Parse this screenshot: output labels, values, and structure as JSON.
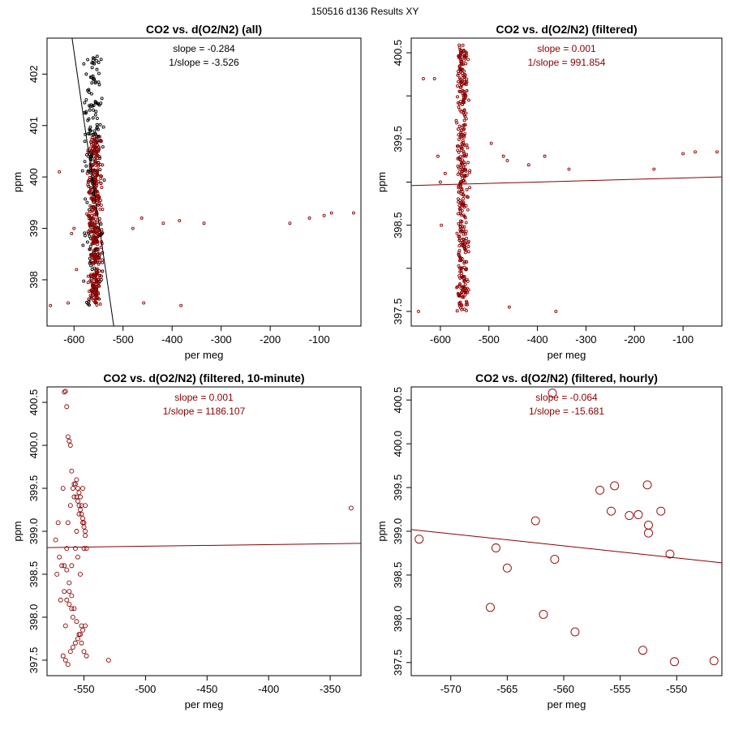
{
  "supertitle": "150516   d136   Results XY",
  "colors": {
    "black": "#000000",
    "darkred": "#8b0000"
  },
  "chart_data": [
    {
      "type": "scatter",
      "title": "CO2 vs. d(O2/N2) (all)",
      "xlabel": "per meg",
      "ylabel": "ppm",
      "xlim": [
        -655,
        -15
      ],
      "ylim": [
        397.1,
        402.7
      ],
      "xticks": [
        -600,
        -500,
        -400,
        -300,
        -200,
        -100
      ],
      "yticks": [
        398,
        399,
        400,
        401,
        402
      ],
      "yticklabels": [
        "398",
        "399",
        "400",
        "401",
        "402"
      ],
      "annotations": [
        "slope = -0.284",
        "1/slope = -3.526"
      ],
      "annotation_color": "#000000",
      "fit_line": {
        "color": "#000000",
        "points": [
          [
            -604,
            402.7
          ],
          [
            -519,
            397.1
          ]
        ]
      },
      "point_size": "small",
      "series": [
        {
          "name": "all",
          "color": "#000000",
          "cluster": {
            "cx": -560,
            "jitter_x": 18,
            "y_from": 397.5,
            "y_to": 402.4,
            "count": 200
          },
          "x": [
            -580,
            -575,
            -570,
            -575,
            -568,
            -572,
            -566,
            -560,
            -556,
            -578,
            -570,
            -563
          ],
          "y": [
            402.2,
            402.0,
            401.7,
            401.5,
            401.3,
            401.1,
            400.9,
            400.7,
            400.5,
            400.3,
            400.1,
            399.9
          ]
        },
        {
          "name": "filtered",
          "color": "#8b0000",
          "cluster": {
            "cx": -557,
            "jitter_x": 13,
            "y_from": 397.5,
            "y_to": 400.8,
            "count": 340
          },
          "x": [
            -648,
            -630,
            -612,
            -605,
            -600,
            -595,
            -480,
            -462,
            -458,
            -418,
            -385,
            -382,
            -335,
            -160,
            -120,
            -90,
            -75,
            -30
          ],
          "y": [
            397.5,
            400.1,
            397.55,
            398.9,
            399.0,
            398.2,
            399.0,
            399.2,
            397.55,
            399.1,
            399.15,
            397.5,
            399.1,
            399.1,
            399.2,
            399.25,
            399.3,
            399.3
          ]
        }
      ]
    },
    {
      "type": "scatter",
      "title": "CO2 vs. d(O2/N2) (filtered)",
      "xlabel": "per meg",
      "ylabel": "ppm",
      "xlim": [
        -660,
        -20
      ],
      "ylim": [
        397.33,
        400.67
      ],
      "xticks": [
        -600,
        -500,
        -400,
        -300,
        -200,
        -100
      ],
      "yticks": [
        397.5,
        398.0,
        398.5,
        399.0,
        399.5,
        400.0,
        400.5
      ],
      "yticklabels": [
        "397.5",
        "398.5",
        "399.5",
        "400.5"
      ],
      "annotations": [
        "slope = 0.001",
        "1/slope = 991.854"
      ],
      "annotation_color": "#8b0000",
      "fit_line": {
        "color": "#8b0000",
        "points": [
          [
            -660,
            398.96
          ],
          [
            -20,
            399.06
          ]
        ]
      },
      "point_size": "small",
      "series": [
        {
          "name": "filtered",
          "color": "#8b0000",
          "cluster": {
            "cx": -555,
            "jitter_x": 12,
            "y_from": 397.5,
            "y_to": 400.6,
            "count": 380
          },
          "x": [
            -645,
            -635,
            -612,
            -605,
            -600,
            -598,
            -590,
            -495,
            -470,
            -462,
            -458,
            -418,
            -385,
            -362,
            -335,
            -160,
            -100,
            -75,
            -30
          ],
          "y": [
            397.5,
            400.2,
            400.2,
            399.3,
            399.0,
            398.5,
            399.1,
            399.45,
            399.3,
            399.25,
            397.55,
            399.2,
            399.3,
            397.5,
            399.15,
            399.15,
            399.33,
            399.35,
            399.35
          ]
        }
      ]
    },
    {
      "type": "scatter",
      "title": "CO2 vs. d(O2/N2) (filtered, 10-minute)",
      "xlabel": "per meg",
      "ylabel": "ppm",
      "xlim": [
        -580,
        -325
      ],
      "ylim": [
        397.32,
        400.68
      ],
      "xticks": [
        -550,
        -500,
        -450,
        -400,
        -350
      ],
      "yticks": [
        397.5,
        398.0,
        398.5,
        399.0,
        399.5,
        400.0,
        400.5
      ],
      "yticklabels": [
        "397.5",
        "398.0",
        "398.5",
        "399.0",
        "399.5",
        "400.0",
        "400.5"
      ],
      "annotations": [
        "slope = 0.001",
        "1/slope = 1186.107"
      ],
      "annotation_color": "#8b0000",
      "fit_line": {
        "color": "#8b0000",
        "points": [
          [
            -580,
            398.81
          ],
          [
            -325,
            398.86
          ]
        ]
      },
      "point_size": "medium",
      "series": [
        {
          "name": "10-minute",
          "color": "#8b0000",
          "x": [
            -573,
            -572,
            -571,
            -570,
            -569,
            -568,
            -567,
            -566,
            -565,
            -564,
            -563,
            -562,
            -561,
            -560,
            -559,
            -558,
            -557,
            -556,
            -555,
            -554,
            -553,
            -552,
            -551,
            -550,
            -549,
            -548,
            -566,
            -565,
            -564,
            -563,
            -562,
            -561,
            -560,
            -559,
            -558,
            -557,
            -556,
            -555,
            -554,
            -553,
            -552,
            -551,
            -550,
            -549,
            -566,
            -564,
            -562,
            -560,
            -558,
            -556,
            -554,
            -552,
            -550,
            -548,
            -567,
            -565,
            -563,
            -561,
            -559,
            -557,
            -555,
            -553,
            -551,
            -549,
            -556,
            -555,
            -554,
            -553,
            -552,
            -551,
            -550,
            -549,
            -564,
            -562,
            -560,
            -530,
            -333
          ],
          "y": [
            398.9,
            398.5,
            399.1,
            398.7,
            398.2,
            398.6,
            399.5,
            398.3,
            397.9,
            398.8,
            399.1,
            398.4,
            399.3,
            398.6,
            398.0,
            399.4,
            398.8,
            399.0,
            398.7,
            399.2,
            398.5,
            397.9,
            399.5,
            398.8,
            399.3,
            398.8,
            400.62,
            400.63,
            400.45,
            400.1,
            400.05,
            400.0,
            399.7,
            399.5,
            399.55,
            399.55,
            399.4,
            399.35,
            399.3,
            399.25,
            399.2,
            399.1,
            399.05,
            399.0,
            398.6,
            398.55,
            398.3,
            398.25,
            398.1,
            397.95,
            397.8,
            397.7,
            397.6,
            397.55,
            397.55,
            397.5,
            397.45,
            397.6,
            397.65,
            397.7,
            397.75,
            397.8,
            397.85,
            397.9,
            399.6,
            399.5,
            399.45,
            399.4,
            399.3,
            399.15,
            399.1,
            398.95,
            398.2,
            398.15,
            398.1,
            397.5,
            399.27
          ]
        }
      ]
    },
    {
      "type": "scatter",
      "title": "CO2 vs. d(O2/N2) (filtered, hourly)",
      "xlabel": "per meg",
      "ylabel": "ppm",
      "xlim": [
        -573.5,
        -546
      ],
      "ylim": [
        397.35,
        400.65
      ],
      "xticks": [
        -570,
        -565,
        -560,
        -555,
        -550
      ],
      "yticks": [
        397.5,
        398.0,
        398.5,
        399.0,
        399.5,
        400.0,
        400.5
      ],
      "yticklabels": [
        "397.5",
        "398.0",
        "398.5",
        "399.0",
        "399.5",
        "400.0",
        "400.5"
      ],
      "annotations": [
        "slope = -0.064",
        "1/slope = -15.681"
      ],
      "annotation_color": "#8b0000",
      "fit_line": {
        "color": "#8b0000",
        "points": [
          [
            -573.5,
            399.02
          ],
          [
            -546,
            398.64
          ]
        ]
      },
      "point_size": "large",
      "series": [
        {
          "name": "hourly",
          "color": "#8b0000",
          "x": [
            -572.8,
            -566.5,
            -566,
            -565,
            -562.5,
            -561.8,
            -560.8,
            -561,
            -559,
            -556.8,
            -555.8,
            -555.5,
            -554.2,
            -553.4,
            -553,
            -552.6,
            -552.5,
            -552.5,
            -551.4,
            -550.6,
            -550.2,
            -546.7
          ],
          "y": [
            398.91,
            398.13,
            398.81,
            398.58,
            399.12,
            398.05,
            398.68,
            400.58,
            397.85,
            399.47,
            399.23,
            399.52,
            399.18,
            399.19,
            397.64,
            399.53,
            399.07,
            398.98,
            399.23,
            398.74,
            397.51,
            397.52
          ]
        }
      ]
    }
  ]
}
